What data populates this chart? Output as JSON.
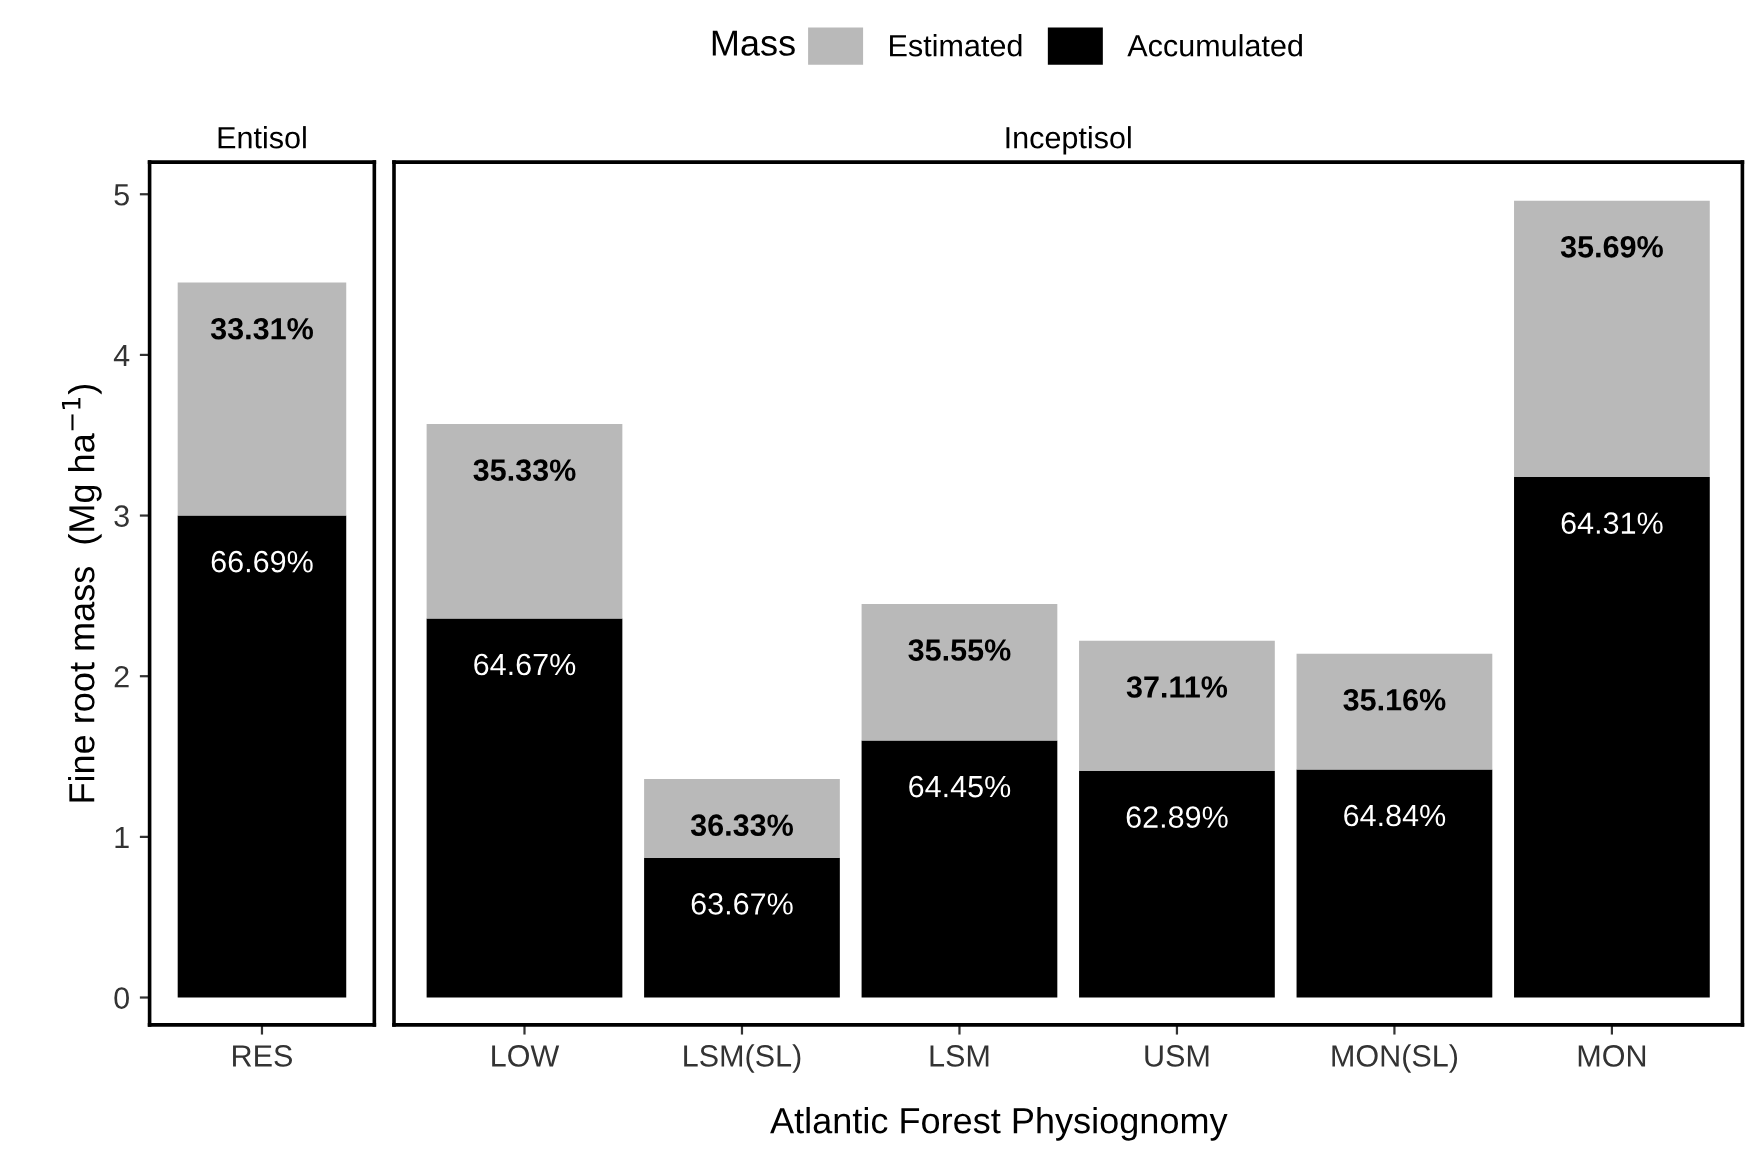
{
  "chart_data": [
    {
      "type": "bar",
      "title": "Entisol",
      "ylabel": "Fine root mass  (Mg ha$^{−1}$)",
      "legend_title": "Mass",
      "legend": "top",
      "stacked": true,
      "categories": [
        "RES"
      ],
      "ylim": [
        -0.17,
        5.2
      ],
      "yticks": [
        0,
        1,
        2,
        3,
        4,
        5
      ],
      "grid": false,
      "series": [
        {
          "name": "Accumulated",
          "color": "#000000",
          "values": [
            3.0
          ]
        },
        {
          "name": "Estimated",
          "color": "#b9b9b9",
          "values": [
            1.45
          ]
        }
      ],
      "annotations": [
        {
          "text": "66.69%",
          "x": "RES",
          "y": 3.0
        },
        {
          "text": "33.31%",
          "x": "RES",
          "y": 4.45
        }
      ]
    },
    {
      "type": "bar",
      "title": "Inceptisol",
      "xlabel": "Atlantic Forest Physiognomy",
      "stacked": true,
      "categories": [
        "LOW",
        "LSM(SL)",
        "LSM",
        "USM",
        "MON(SL)",
        "MON"
      ],
      "ylim": [
        -0.17,
        5.2
      ],
      "tick_labels": "x",
      "grid": false,
      "series": [
        {
          "color": "#000000",
          "values": [
            2.36,
            0.87,
            1.6,
            1.41,
            1.42,
            3.24
          ]
        },
        {
          "color": "#b9b9b9",
          "values": [
            1.21,
            0.49,
            0.85,
            0.81,
            0.72,
            1.72
          ]
        }
      ],
      "annotations": [
        {
          "text": "64.67%",
          "x": "LOW",
          "y": 2.36
        },
        {
          "text": "35.33%",
          "x": "LOW",
          "y": 3.57
        },
        {
          "text": "63.67%",
          "x": "LSM(SL)",
          "y": 0.87
        },
        {
          "text": "36.33%",
          "x": "LSM(SL)",
          "y": 1.36
        },
        {
          "text": "64.45%",
          "x": "LSM",
          "y": 1.6
        },
        {
          "text": "35.55%",
          "x": "LSM",
          "y": 2.45
        },
        {
          "text": "62.89%",
          "x": "USM",
          "y": 1.41
        },
        {
          "text": "37.11%",
          "x": "USM",
          "y": 2.22
        },
        {
          "text": "64.84%",
          "x": "MON(SL)",
          "y": 1.42
        },
        {
          "text": "35.16%",
          "x": "MON(SL)",
          "y": 2.14
        },
        {
          "text": "64.31%",
          "x": "MON",
          "y": 3.24
        },
        {
          "text": "35.69%",
          "x": "MON",
          "y": 4.96
        }
      ]
    }
  ]
}
